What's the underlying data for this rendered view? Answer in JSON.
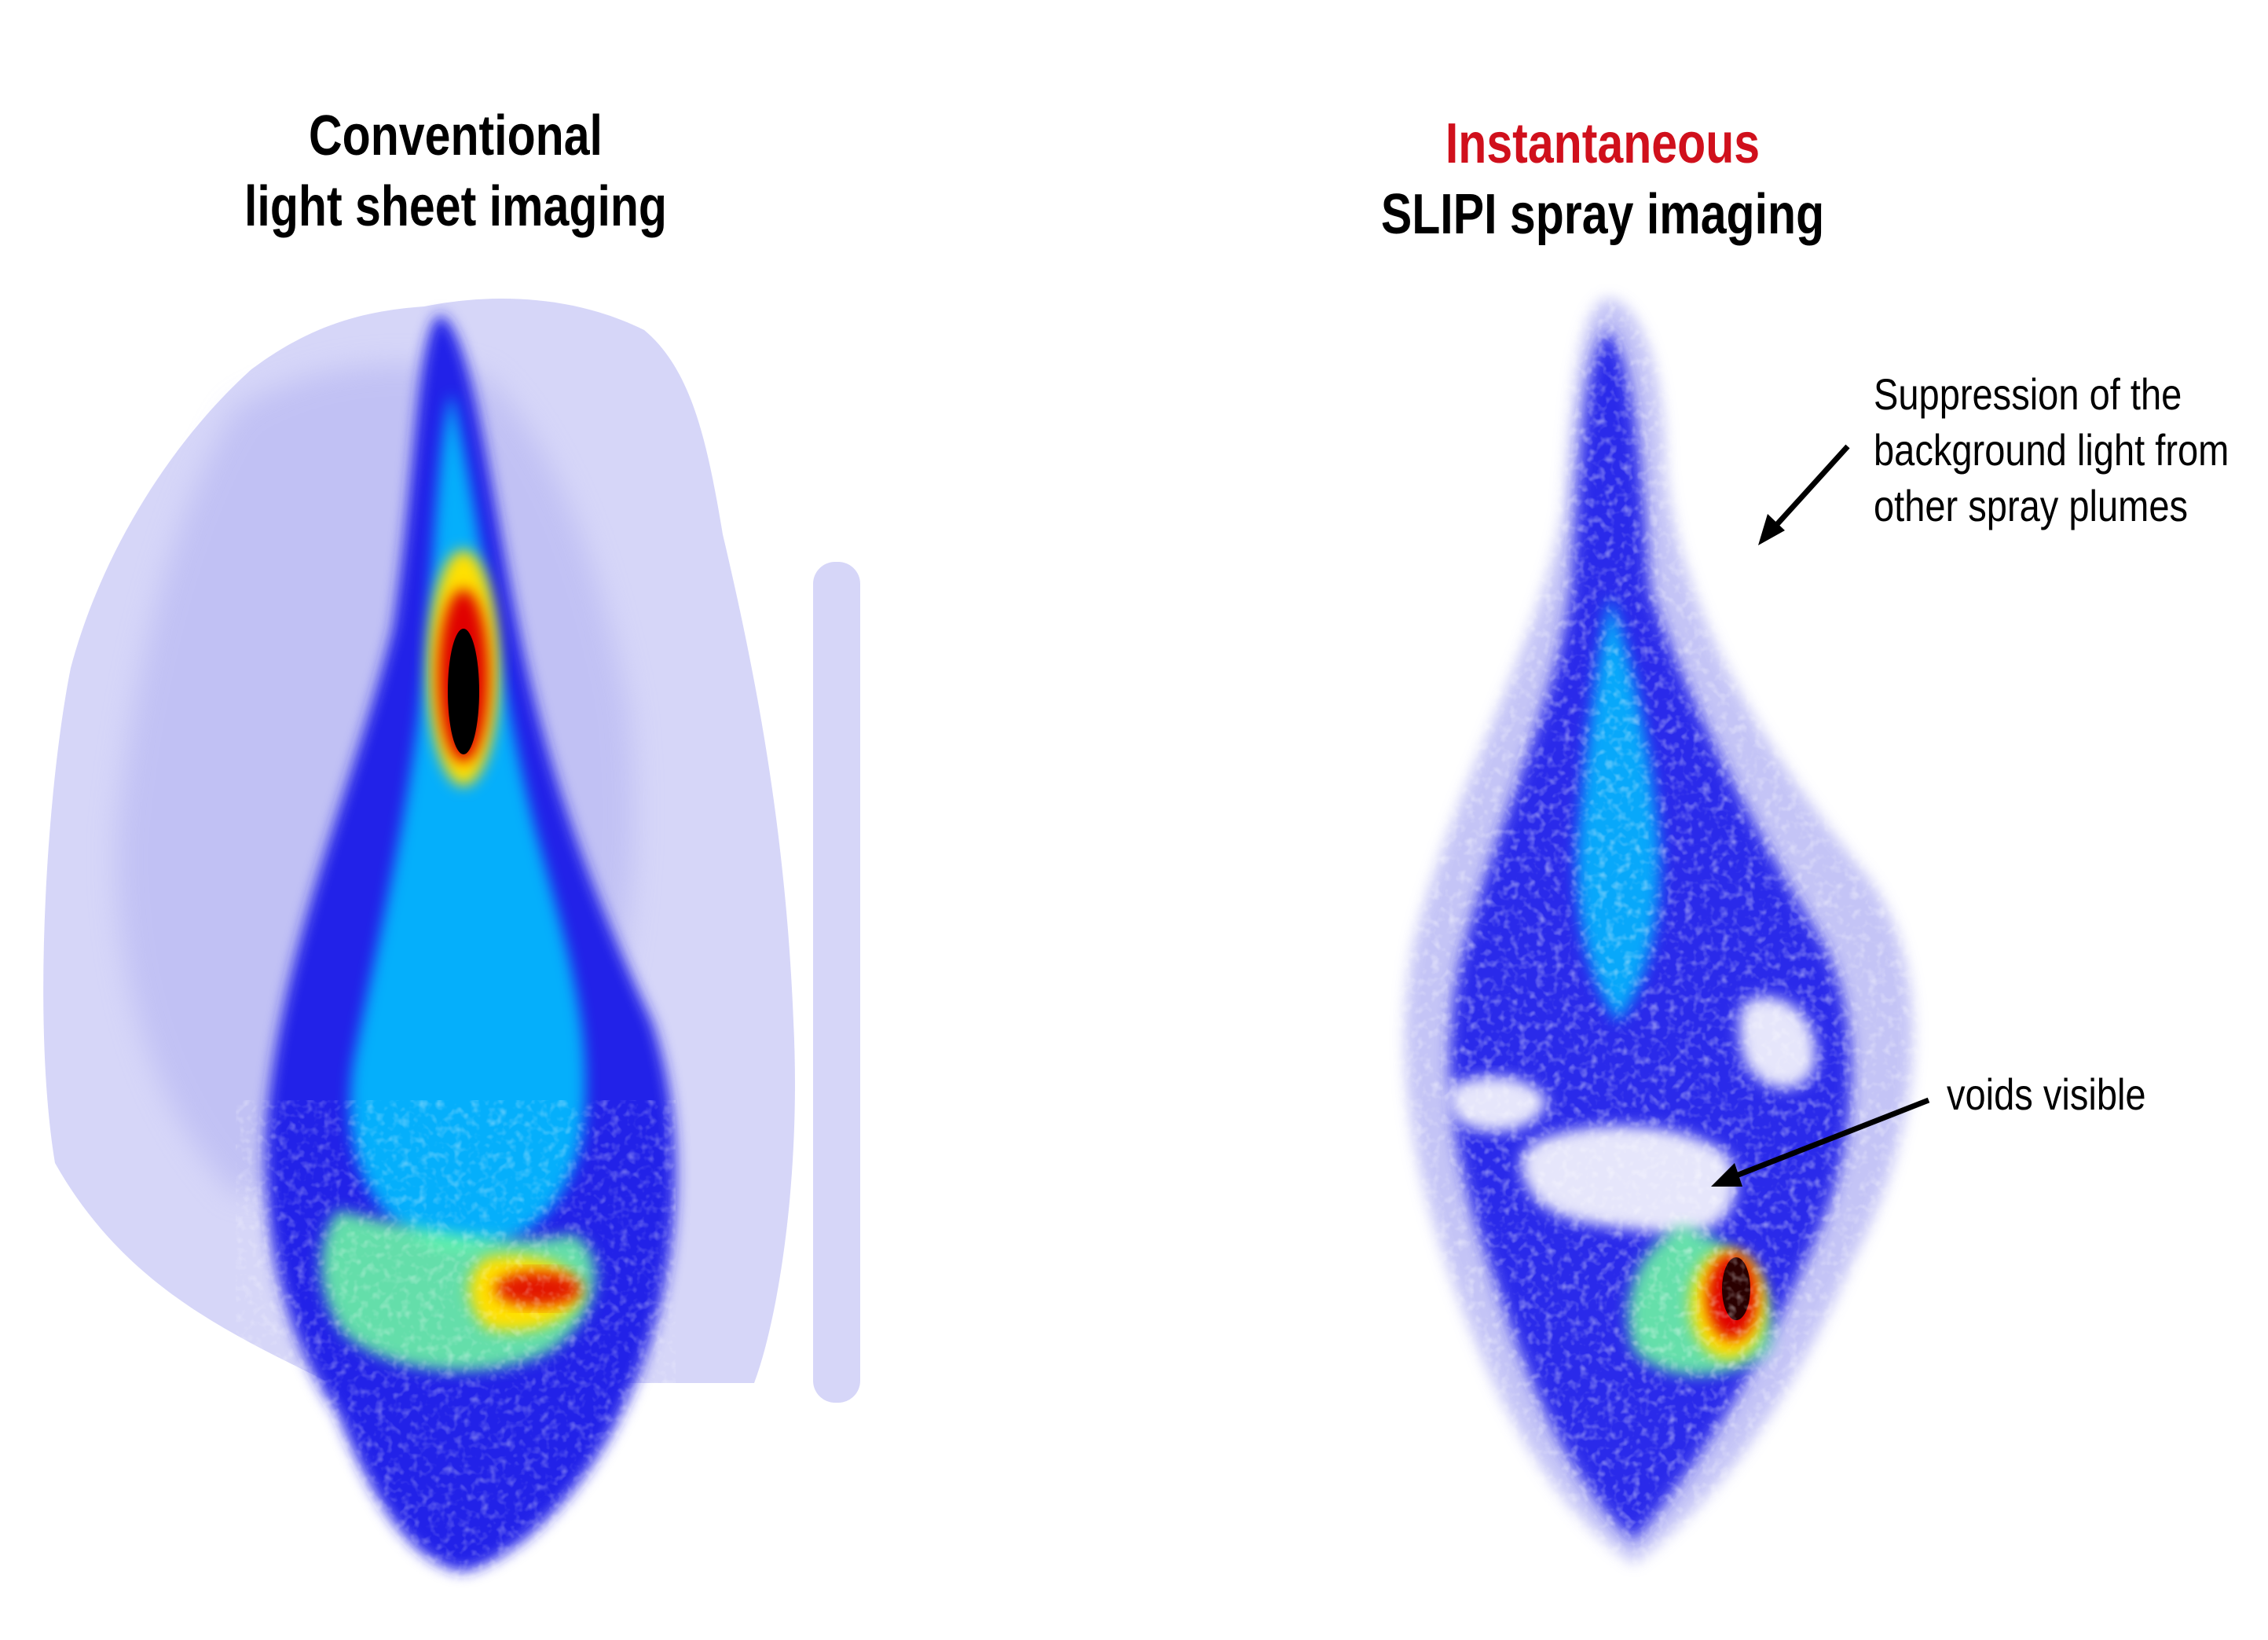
{
  "left_panel": {
    "title_line1": "Conventional",
    "title_line2": "light sheet imaging"
  },
  "right_panel": {
    "title_line1": "Instantaneous",
    "title_line1_color": "#d0101c",
    "title_line2": "SLIPI spray imaging"
  },
  "annotations": {
    "background_suppression": {
      "line1": "Suppression of the",
      "line2": "background light from",
      "line3": "other spray plumes"
    },
    "voids": {
      "text": "voids visible"
    }
  },
  "colormap": [
    "#ffffff",
    "#d6d6f8",
    "#9a9af0",
    "#1a1aee",
    "#00c8ff",
    "#ffe000",
    "#e00000",
    "#000000"
  ]
}
